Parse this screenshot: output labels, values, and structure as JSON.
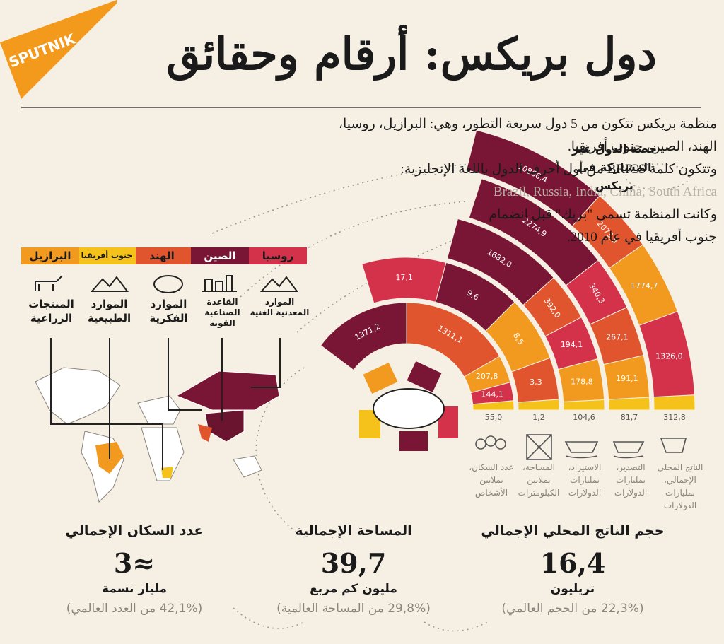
{
  "brand": "SPUTNIK",
  "title": "دول بريكس: أرقام وحقائق",
  "intro": [
    "منظمة بريكس تتكون من 5 دول سريعة التطور، وهي: البرازيل، روسيا، الهند، الصين، جنوب أفريقيا.",
    "وتتكون كلمة BRICS من أول أحرف الدول باللغة الإنجليزية:",
    "Brazil, Russia, India, China, South Africa",
    "وكانت المنظمة تسمى \"بريك\" قبل انضمام",
    "جنوب أفريقيا في عام 2010."
  ],
  "non_member_label": "حصة الدول غير المشاركة في بريكس",
  "countries": [
    {
      "name": "روسيا",
      "color": "#d4324a"
    },
    {
      "name": "الصين",
      "color": "#7a1635"
    },
    {
      "name": "الهند",
      "color": "#e0552e"
    },
    {
      "name": "جنوب أفريقيا",
      "color": "#f4c21a"
    },
    {
      "name": "البرازيل",
      "color": "#f29a1f"
    }
  ],
  "resources": [
    "الموارد المعدنية الغنية",
    "القاعدة الصناعية القوية",
    "الموارد الفكرية",
    "الموارد الطبيعية",
    "المنتجات الزراعية"
  ],
  "indicators": [
    {
      "label": "الناتج المحلي الإجمالي، بمليارات الدولارات",
      "segments": [
        {
          "value": "312,8",
          "color": "#f4c21a"
        },
        {
          "value": "1326,0",
          "color": "#d4324a"
        },
        {
          "value": "1774,7",
          "color": "#f29a1f"
        },
        {
          "value": "2073,5",
          "color": "#e0552e"
        },
        {
          "value": "10866,4",
          "color": "#7a1635"
        }
      ]
    },
    {
      "label": "التصدير، بمليارات الدولارات",
      "segments": [
        {
          "value": "81,7",
          "color": "#f4c21a"
        },
        {
          "value": "191,1",
          "color": "#f29a1f"
        },
        {
          "value": "267,1",
          "color": "#e0552e"
        },
        {
          "value": "340,3",
          "color": "#d4324a"
        },
        {
          "value": "2274,9",
          "color": "#7a1635"
        }
      ]
    },
    {
      "label": "الاستيراد، بمليارات الدولارات",
      "segments": [
        {
          "value": "104,6",
          "color": "#f4c21a"
        },
        {
          "value": "178,8",
          "color": "#f29a1f"
        },
        {
          "value": "194,1",
          "color": "#d4324a"
        },
        {
          "value": "392,0",
          "color": "#e0552e"
        },
        {
          "value": "1682,0",
          "color": "#7a1635"
        }
      ]
    },
    {
      "label": "المساحة، بملايين الكيلومترات",
      "segments": [
        {
          "value": "1,2",
          "color": "#f4c21a"
        },
        {
          "value": "3,3",
          "color": "#e0552e"
        },
        {
          "value": "8,5",
          "color": "#f29a1f"
        },
        {
          "value": "9,6",
          "color": "#7a1635"
        },
        {
          "value": "17,1",
          "color": "#d4324a"
        }
      ]
    },
    {
      "label": "عدد السكان، بملايين الأشخاص",
      "segments": [
        {
          "value": "55,0",
          "color": "#f4c21a"
        },
        {
          "value": "144,1",
          "color": "#d4324a"
        },
        {
          "value": "207,8",
          "color": "#f29a1f"
        },
        {
          "value": "1311,1",
          "color": "#e0552e"
        },
        {
          "value": "1371,2",
          "color": "#7a1635"
        }
      ]
    }
  ],
  "totals": [
    {
      "title": "حجم الناتج المحلي الإجمالي",
      "value": "16,4",
      "unit": "تريليون",
      "share": "(22,3% من الحجم العالمي)"
    },
    {
      "title": "المساحة الإجمالية",
      "value": "39,7",
      "unit": "مليون كم مربع",
      "share": "(29,8% من المساحة العالمية)"
    },
    {
      "title": "عدد السكان الإجمالي",
      "value": "≈3",
      "unit": "مليار نسمة",
      "share": "(42,1% من العدد العالمي)"
    }
  ]
}
